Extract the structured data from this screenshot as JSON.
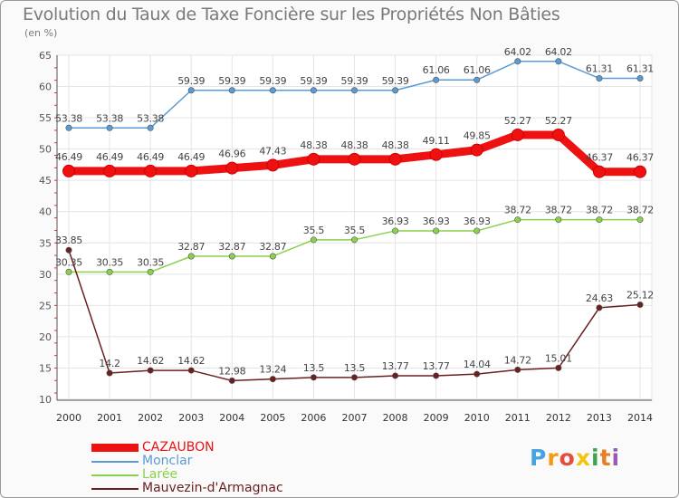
{
  "chart_data": {
    "type": "line",
    "title": "Evolution du Taux de Taxe Foncière sur les Propriétés Non Bâties",
    "ylabel": "(en %)",
    "xlabel": "",
    "x": [
      "2000",
      "2001",
      "2002",
      "2003",
      "2004",
      "2005",
      "2006",
      "2007",
      "2008",
      "2009",
      "2010",
      "2011",
      "2012",
      "2013",
      "2014"
    ],
    "yticks": [
      "10",
      "15",
      "20",
      "25",
      "30",
      "35",
      "40",
      "45",
      "50",
      "55",
      "60",
      "65"
    ],
    "ylim": [
      10,
      65
    ],
    "grid": true,
    "legend_position": "bottom-left",
    "series": [
      {
        "name": "CAZAUBON",
        "color": "#ee1111",
        "emphasis": "thick",
        "values": [
          46.49,
          46.49,
          46.49,
          46.49,
          46.96,
          47.43,
          48.38,
          48.38,
          48.38,
          49.11,
          49.85,
          52.27,
          52.27,
          46.37,
          46.37
        ],
        "labels": [
          "46.49",
          "46.49",
          "46.49",
          "46.49",
          "46.96",
          "47.43",
          "48.38",
          "48.38",
          "48.38",
          "49.11",
          "49.85",
          "52.27",
          "52.27",
          "46.37",
          "46.37"
        ]
      },
      {
        "name": "Monclar",
        "color": "#5b9bd5",
        "emphasis": "thin",
        "values": [
          53.38,
          53.38,
          53.38,
          59.39,
          59.39,
          59.39,
          59.39,
          59.39,
          59.39,
          61.06,
          61.06,
          64.02,
          64.02,
          61.31,
          61.31
        ],
        "labels": [
          "53.38",
          "53.38",
          "53.38",
          "59.39",
          "59.39",
          "59.39",
          "59.39",
          "59.39",
          "59.39",
          "61.06",
          "61.06",
          "64.02",
          "64.02",
          "61.31",
          "61.31"
        ]
      },
      {
        "name": "Larée",
        "color": "#8ad14d",
        "emphasis": "thin",
        "values": [
          30.35,
          30.35,
          30.35,
          32.87,
          32.87,
          32.87,
          35.5,
          35.5,
          36.93,
          36.93,
          36.93,
          38.72,
          38.72,
          38.72,
          38.72
        ],
        "labels": [
          "30.35",
          "30.35",
          "30.35",
          "32.87",
          "32.87",
          "32.87",
          "35.5",
          "35.5",
          "36.93",
          "36.93",
          "36.93",
          "38.72",
          "38.72",
          "38.72",
          "38.72"
        ]
      },
      {
        "name": "Mauvezin-d'Armagnac",
        "color": "#6b2020",
        "emphasis": "thin",
        "values": [
          33.85,
          14.2,
          14.62,
          14.62,
          12.98,
          13.24,
          13.5,
          13.5,
          13.77,
          13.77,
          14.04,
          14.72,
          15.01,
          24.63,
          25.12
        ],
        "labels": [
          "33.85",
          "14.2",
          "14.62",
          "14.62",
          "12.98",
          "13.24",
          "13.5",
          "13.5",
          "13.77",
          "13.77",
          "14.04",
          "14.72",
          "15.01",
          "24.63",
          "25.12"
        ]
      }
    ]
  },
  "logo": {
    "letters": [
      "P",
      "r",
      "o",
      "x",
      "i",
      "t",
      "i"
    ],
    "colors": [
      "#4aa3df",
      "#f39c12",
      "#e74c3c",
      "#f1c40f",
      "#3fa34d",
      "#e67e22",
      "#9b59b6"
    ]
  }
}
